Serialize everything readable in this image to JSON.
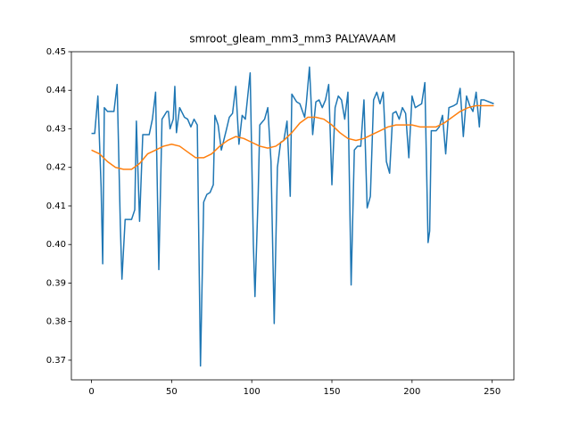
{
  "chart_data": {
    "type": "line",
    "title": "smroot_gleam_mm3_mm3 PALYAVAAM",
    "xlim": [
      -12.55,
      263.55
    ],
    "ylim": [
      0.3649,
      0.45
    ],
    "xticks": [
      0,
      50,
      100,
      150,
      200,
      250
    ],
    "yticks": [
      0.37,
      0.38,
      0.39,
      {
        "value": 0.4,
        "label": "0.40"
      },
      0.41,
      0.42,
      0.43,
      0.44,
      0.45
    ],
    "series": [
      {
        "color": "#1f77b4",
        "x": [
          0,
          2,
          4,
          6,
          7,
          8,
          10,
          14,
          16,
          18,
          19,
          21,
          25,
          27,
          28,
          30,
          32,
          36,
          38,
          40,
          42,
          44,
          47,
          48,
          49,
          51,
          52,
          53,
          55,
          58,
          60,
          62,
          64,
          66,
          68,
          70,
          72,
          74,
          76,
          77,
          79,
          81,
          84,
          86,
          88,
          90,
          92,
          94,
          96,
          99,
          101,
          102,
          104,
          105,
          108,
          110,
          112,
          114,
          116,
          118,
          120,
          122,
          124,
          125,
          128,
          130,
          133,
          134,
          136,
          138,
          140,
          142,
          144,
          146,
          148,
          150,
          152,
          154,
          156,
          158,
          160,
          162,
          164,
          166,
          168,
          170,
          172,
          174,
          176,
          178,
          180,
          182,
          184,
          186,
          188,
          190,
          192,
          194,
          196,
          198,
          200,
          202,
          204,
          206,
          208,
          210,
          211,
          212,
          215,
          217,
          219,
          221,
          223,
          226,
          228,
          230,
          232,
          234,
          236,
          238,
          240,
          242,
          243,
          245,
          251
        ],
        "values": [
          0.4288,
          0.4288,
          0.4385,
          0.415,
          0.395,
          0.4355,
          0.4345,
          0.4345,
          0.4415,
          0.405,
          0.391,
          0.4065,
          0.4065,
          0.409,
          0.432,
          0.406,
          0.4285,
          0.4285,
          0.4325,
          0.4395,
          0.3935,
          0.4325,
          0.4345,
          0.4345,
          0.43,
          0.4325,
          0.441,
          0.429,
          0.4355,
          0.433,
          0.4325,
          0.4305,
          0.4325,
          0.431,
          0.3685,
          0.411,
          0.413,
          0.4135,
          0.4155,
          0.4335,
          0.431,
          0.4245,
          0.4295,
          0.433,
          0.434,
          0.441,
          0.426,
          0.4335,
          0.4325,
          0.4445,
          0.4,
          0.3865,
          0.413,
          0.431,
          0.4325,
          0.4355,
          0.4215,
          0.3795,
          0.42,
          0.4265,
          0.427,
          0.432,
          0.4125,
          0.439,
          0.437,
          0.4365,
          0.433,
          0.4365,
          0.446,
          0.4285,
          0.437,
          0.4375,
          0.4355,
          0.4375,
          0.4415,
          0.4155,
          0.4355,
          0.4385,
          0.4375,
          0.4325,
          0.4395,
          0.3895,
          0.4245,
          0.4255,
          0.4255,
          0.4375,
          0.4095,
          0.4125,
          0.4375,
          0.4395,
          0.4365,
          0.4395,
          0.4215,
          0.4185,
          0.434,
          0.4345,
          0.4325,
          0.4355,
          0.434,
          0.4225,
          0.4385,
          0.4355,
          0.436,
          0.4365,
          0.442,
          0.4005,
          0.4035,
          0.4295,
          0.4295,
          0.4305,
          0.4335,
          0.4235,
          0.4355,
          0.436,
          0.4365,
          0.4405,
          0.428,
          0.4385,
          0.436,
          0.4345,
          0.4395,
          0.4305,
          0.4375,
          0.4375,
          0.4365
        ]
      },
      {
        "color": "#ff7f0e",
        "x": [
          0,
          5,
          10,
          15,
          20,
          25,
          30,
          35,
          40,
          45,
          50,
          55,
          60,
          65,
          70,
          75,
          80,
          85,
          90,
          95,
          100,
          105,
          110,
          115,
          120,
          125,
          130,
          135,
          140,
          145,
          150,
          155,
          160,
          165,
          170,
          175,
          180,
          185,
          190,
          195,
          200,
          205,
          210,
          215,
          220,
          225,
          230,
          235,
          240,
          245,
          251
        ],
        "values": [
          0.4245,
          0.4235,
          0.4215,
          0.42,
          0.4195,
          0.4195,
          0.421,
          0.4235,
          0.4245,
          0.4255,
          0.426,
          0.4255,
          0.424,
          0.4225,
          0.4225,
          0.4235,
          0.4255,
          0.427,
          0.428,
          0.4275,
          0.4265,
          0.4255,
          0.425,
          0.4255,
          0.427,
          0.429,
          0.4315,
          0.433,
          0.433,
          0.4325,
          0.431,
          0.429,
          0.4275,
          0.427,
          0.4275,
          0.4285,
          0.4295,
          0.4305,
          0.431,
          0.431,
          0.431,
          0.4305,
          0.4305,
          0.4305,
          0.4315,
          0.433,
          0.4345,
          0.4355,
          0.436,
          0.436,
          0.436
        ]
      }
    ]
  }
}
